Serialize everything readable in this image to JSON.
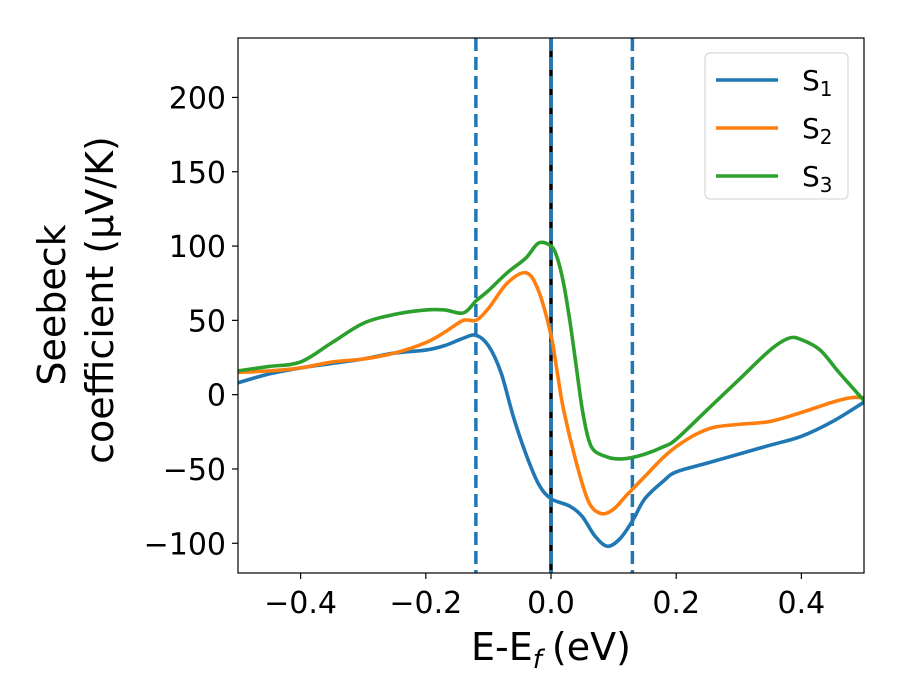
{
  "chart_data": {
    "type": "line",
    "xlabel": "E-E",
    "xlabel_sub": "f",
    "xlabel_unit": "(eV)",
    "ylabel_line1": "Seebeck",
    "ylabel_line2": "coefficient  (μV/K)",
    "xlim": [
      -0.5,
      0.5
    ],
    "ylim": [
      -120,
      240
    ],
    "xticks": [
      -0.4,
      -0.2,
      0.0,
      0.2,
      0.4
    ],
    "xtick_labels": [
      "−0.4",
      "−0.2",
      "0.0",
      "0.2",
      "0.4"
    ],
    "yticks": [
      -100,
      -50,
      0,
      50,
      100,
      150,
      200
    ],
    "ytick_labels": [
      "−100",
      "−50",
      "0",
      "50",
      "100",
      "150",
      "200"
    ],
    "legend_position": "top-right",
    "grid": false,
    "vlines": [
      {
        "x": -0.12,
        "style": "dashed",
        "color": "#1f77b4"
      },
      {
        "x": 0.0,
        "style": "solid",
        "color": "#000000"
      },
      {
        "x": 0.0,
        "style": "dashed",
        "color": "#1f77b4"
      },
      {
        "x": 0.13,
        "style": "dashed",
        "color": "#1f77b4"
      }
    ],
    "series": [
      {
        "name": "S",
        "sub": "1",
        "color": "#1f77b4",
        "points": [
          [
            -0.5,
            8
          ],
          [
            -0.45,
            14
          ],
          [
            -0.4,
            18
          ],
          [
            -0.35,
            21
          ],
          [
            -0.3,
            24
          ],
          [
            -0.25,
            28
          ],
          [
            -0.2,
            30
          ],
          [
            -0.17,
            33
          ],
          [
            -0.14,
            38
          ],
          [
            -0.12,
            40
          ],
          [
            -0.1,
            33
          ],
          [
            -0.08,
            15
          ],
          [
            -0.06,
            -15
          ],
          [
            -0.04,
            -40
          ],
          [
            -0.02,
            -60
          ],
          [
            0.0,
            -70
          ],
          [
            0.03,
            -75
          ],
          [
            0.05,
            -82
          ],
          [
            0.07,
            -95
          ],
          [
            0.09,
            -102
          ],
          [
            0.11,
            -97
          ],
          [
            0.13,
            -85
          ],
          [
            0.15,
            -70
          ],
          [
            0.18,
            -58
          ],
          [
            0.2,
            -52
          ],
          [
            0.25,
            -46
          ],
          [
            0.3,
            -40
          ],
          [
            0.35,
            -34
          ],
          [
            0.4,
            -28
          ],
          [
            0.45,
            -18
          ],
          [
            0.5,
            -5
          ]
        ]
      },
      {
        "name": "S",
        "sub": "2",
        "color": "#ff7f0e",
        "points": [
          [
            -0.5,
            15
          ],
          [
            -0.45,
            16
          ],
          [
            -0.4,
            18
          ],
          [
            -0.35,
            22
          ],
          [
            -0.3,
            24
          ],
          [
            -0.25,
            28
          ],
          [
            -0.2,
            35
          ],
          [
            -0.17,
            42
          ],
          [
            -0.14,
            50
          ],
          [
            -0.12,
            50
          ],
          [
            -0.1,
            58
          ],
          [
            -0.07,
            75
          ],
          [
            -0.04,
            82
          ],
          [
            -0.02,
            70
          ],
          [
            0.0,
            40
          ],
          [
            0.01,
            15
          ],
          [
            0.02,
            -10
          ],
          [
            0.04,
            -45
          ],
          [
            0.06,
            -72
          ],
          [
            0.08,
            -80
          ],
          [
            0.1,
            -77
          ],
          [
            0.12,
            -68
          ],
          [
            0.15,
            -55
          ],
          [
            0.18,
            -42
          ],
          [
            0.2,
            -35
          ],
          [
            0.23,
            -27
          ],
          [
            0.26,
            -22
          ],
          [
            0.3,
            -20
          ],
          [
            0.35,
            -18
          ],
          [
            0.4,
            -12
          ],
          [
            0.45,
            -5
          ],
          [
            0.48,
            -2
          ],
          [
            0.5,
            -2
          ]
        ]
      },
      {
        "name": "S",
        "sub": "3",
        "color": "#2ca02c",
        "points": [
          [
            -0.5,
            16
          ],
          [
            -0.45,
            19
          ],
          [
            -0.4,
            22
          ],
          [
            -0.35,
            35
          ],
          [
            -0.3,
            48
          ],
          [
            -0.25,
            54
          ],
          [
            -0.2,
            57
          ],
          [
            -0.17,
            57
          ],
          [
            -0.14,
            55
          ],
          [
            -0.12,
            63
          ],
          [
            -0.1,
            70
          ],
          [
            -0.07,
            82
          ],
          [
            -0.04,
            92
          ],
          [
            -0.02,
            102
          ],
          [
            0.0,
            100
          ],
          [
            0.01,
            92
          ],
          [
            0.02,
            75
          ],
          [
            0.03,
            50
          ],
          [
            0.04,
            20
          ],
          [
            0.05,
            -10
          ],
          [
            0.06,
            -30
          ],
          [
            0.07,
            -38
          ],
          [
            0.09,
            -42
          ],
          [
            0.1,
            -43
          ],
          [
            0.12,
            -43
          ],
          [
            0.15,
            -40
          ],
          [
            0.18,
            -35
          ],
          [
            0.2,
            -30
          ],
          [
            0.25,
            -10
          ],
          [
            0.3,
            10
          ],
          [
            0.35,
            30
          ],
          [
            0.38,
            38
          ],
          [
            0.4,
            37
          ],
          [
            0.43,
            30
          ],
          [
            0.46,
            15
          ],
          [
            0.5,
            -4
          ]
        ]
      }
    ]
  }
}
